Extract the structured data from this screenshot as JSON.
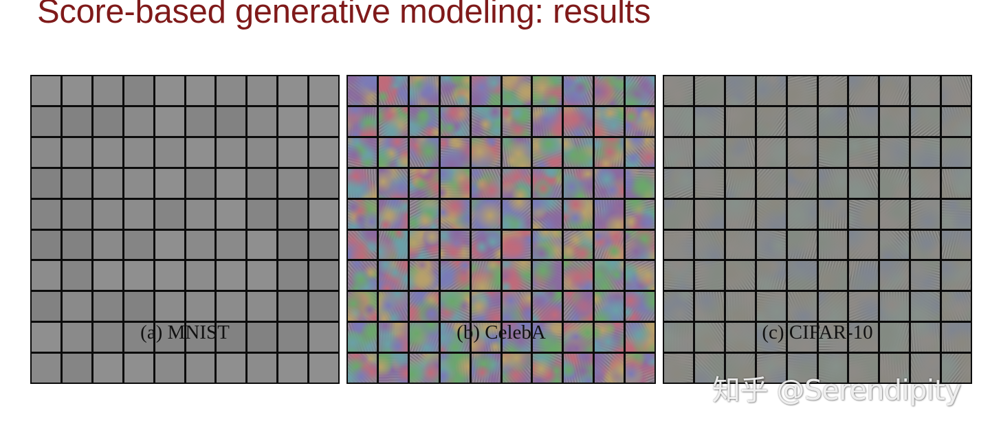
{
  "slide": {
    "title": "Score-based generative modeling: results",
    "title_color": "#7f1a1a"
  },
  "panels": [
    {
      "id": "mnist",
      "caption": "(a) MNIST",
      "grid_rows": 10,
      "grid_cols": 10,
      "content": "noisy gray sample images",
      "palette": [
        "#8a8a8a",
        "#858585",
        "#8f8f8f",
        "#828282",
        "#8c8c8c"
      ]
    },
    {
      "id": "celeba",
      "caption": "(b) CelebA",
      "grid_rows": 10,
      "grid_cols": 10,
      "content": "colorful high-frequency noise sample images",
      "palette": [
        "#c06a7a",
        "#6aa86a",
        "#7a7ab8",
        "#b8a06a",
        "#8a6aa0",
        "#6aa0a8"
      ]
    },
    {
      "id": "cifar10",
      "caption": "(c) CIFAR-10",
      "grid_rows": 10,
      "grid_cols": 10,
      "content": "muted grayish noisy sample images",
      "palette": [
        "#8a8a88",
        "#838a82",
        "#8e8a86",
        "#7f8590",
        "#8a887f",
        "#86908a"
      ]
    }
  ],
  "watermark": {
    "text": "知乎 @Serendipity"
  }
}
